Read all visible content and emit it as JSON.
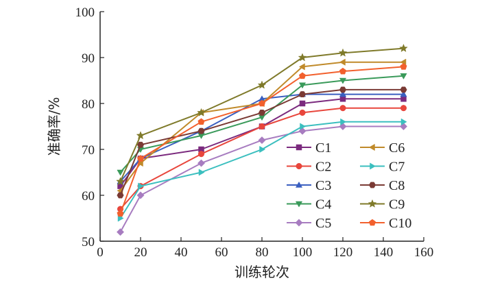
{
  "chart_data": {
    "type": "line",
    "xlabel": "训练轮次",
    "ylabel": "准确率/%",
    "xlim": [
      0,
      160
    ],
    "ylim": [
      50,
      100
    ],
    "x_ticks": [
      "0",
      "20",
      "40",
      "60",
      "80",
      "100",
      "120",
      "140",
      "160"
    ],
    "y_ticks": [
      "50",
      "60",
      "70",
      "80",
      "90",
      "100"
    ],
    "grid": false,
    "legend_position": "bottom-right",
    "x": [
      10,
      20,
      50,
      80,
      100,
      120,
      150
    ],
    "series": [
      {
        "name": "C1",
        "color": "#7b2a7e",
        "marker": "square",
        "values": [
          62,
          68,
          70,
          75,
          80,
          81,
          81
        ]
      },
      {
        "name": "C2",
        "color": "#e8463c",
        "marker": "circle",
        "values": [
          57,
          62,
          69,
          75,
          78,
          79,
          79
        ]
      },
      {
        "name": "C3",
        "color": "#3a5fc0",
        "marker": "triangle-up",
        "values": [
          63,
          68,
          74,
          81,
          82,
          82,
          82
        ]
      },
      {
        "name": "C4",
        "color": "#3a9a5a",
        "marker": "triangle-down",
        "values": [
          65,
          70,
          73,
          77,
          84,
          85,
          86
        ]
      },
      {
        "name": "C5",
        "color": "#a77cc0",
        "marker": "diamond",
        "values": [
          52,
          60,
          67,
          72,
          74,
          75,
          75
        ]
      },
      {
        "name": "C6",
        "color": "#c08a2a",
        "marker": "triangle-left",
        "values": [
          61,
          67,
          78,
          80,
          88,
          89,
          89
        ]
      },
      {
        "name": "C7",
        "color": "#3bbfbf",
        "marker": "triangle-right",
        "values": [
          55,
          62,
          65,
          70,
          75,
          76,
          76
        ]
      },
      {
        "name": "C8",
        "color": "#7a3a34",
        "marker": "hexagon",
        "values": [
          60,
          71,
          74,
          78,
          82,
          83,
          83
        ]
      },
      {
        "name": "C9",
        "color": "#7f7a2a",
        "marker": "star",
        "values": [
          63,
          73,
          78,
          84,
          90,
          91,
          92
        ]
      },
      {
        "name": "C10",
        "color": "#f2602d",
        "marker": "pentagon",
        "values": [
          56,
          68,
          76,
          80,
          86,
          87,
          88
        ]
      }
    ]
  }
}
